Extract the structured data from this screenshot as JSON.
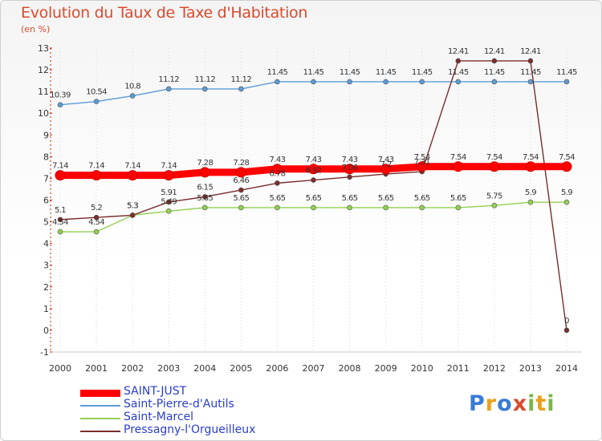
{
  "chart_data": {
    "type": "line",
    "title": "Evolution du Taux de Taxe d'Habitation",
    "ylabel": "(en %)",
    "xlabel": "",
    "x": [
      "2000",
      "2001",
      "2002",
      "2003",
      "2004",
      "2005",
      "2006",
      "2007",
      "2008",
      "2009",
      "2010",
      "2011",
      "2012",
      "2013",
      "2014"
    ],
    "ylim": [
      -1,
      13
    ],
    "yticks": [
      "-1",
      "0",
      "1",
      "2",
      "3",
      "4",
      "5",
      "6",
      "7",
      "8",
      "9",
      "10",
      "11",
      "12",
      "13"
    ],
    "legend_position": "bottom-left",
    "series": [
      {
        "name": "SAINT-JUST",
        "color": "#ff0000",
        "values": [
          7.14,
          7.14,
          7.14,
          7.14,
          7.28,
          7.28,
          7.43,
          7.43,
          7.43,
          7.43,
          7.54,
          7.54,
          7.54,
          7.54,
          7.54
        ],
        "labels": [
          "7.14",
          "7.14",
          "7.14",
          "7.14",
          "7.28",
          "7.28",
          "7.43",
          "7.43",
          "7.43",
          "7.43",
          "7.54",
          "7.54",
          "7.54",
          "7.54",
          "7.54"
        ]
      },
      {
        "name": "Saint-Pierre-d'Autils",
        "color": "#5b9bd5",
        "values": [
          10.39,
          10.54,
          10.8,
          11.12,
          11.12,
          11.12,
          11.45,
          11.45,
          11.45,
          11.45,
          11.45,
          11.45,
          11.45,
          11.45,
          11.45
        ],
        "labels": [
          "10.39",
          "10.54",
          "10.8",
          "11.12",
          "11.12",
          "11.12",
          "11.45",
          "11.45",
          "11.45",
          "11.45",
          "11.45",
          "11.45",
          "11.45",
          "11.45",
          "11.45"
        ]
      },
      {
        "name": "Saint-Marcel",
        "color": "#92d050",
        "values": [
          4.54,
          4.54,
          5.3,
          5.49,
          5.65,
          5.65,
          5.65,
          5.65,
          5.65,
          5.65,
          5.65,
          5.65,
          5.75,
          5.9,
          5.9
        ],
        "labels": [
          "4.54",
          "4.54",
          "5.3",
          "5.49",
          "5.65",
          "5.65",
          "5.65",
          "5.65",
          "5.65",
          "5.65",
          "5.65",
          "5.65",
          "5.75",
          "5.9",
          "5.9"
        ]
      },
      {
        "name": "Pressagny-l'Orgueilleux",
        "color": "#7b2c2c",
        "values": [
          5.1,
          5.2,
          5.3,
          5.91,
          6.15,
          6.46,
          6.78,
          6.92,
          7.06,
          7.2,
          7.31,
          12.41,
          12.41,
          12.41,
          0
        ],
        "labels": [
          "5.1",
          "5.2",
          "5.3",
          "5.91",
          "6.15",
          "6.46",
          "6.78",
          "6.92",
          "7.06",
          "7.2",
          "7.31",
          "12.41",
          "12.41",
          "12.41",
          "0"
        ]
      }
    ]
  },
  "logo": {
    "letters": [
      "P",
      "r",
      "o",
      "x",
      "i",
      "t",
      "i"
    ]
  }
}
